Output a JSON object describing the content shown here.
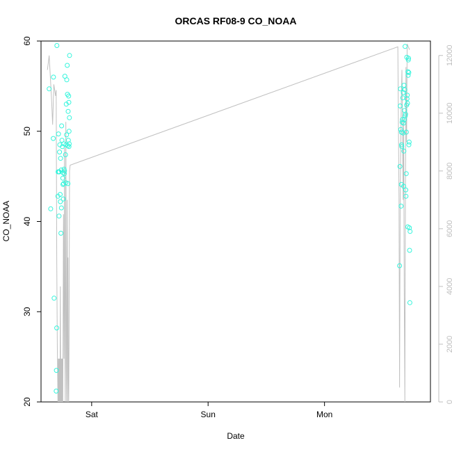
{
  "chart_data": {
    "type": "scatter",
    "title": "ORCAS RF08-9 CO_NOAA",
    "xlabel": "Date",
    "ylabel": "CO_NOAA",
    "x_ticks": [
      "Sat",
      "Sun",
      "Mon"
    ],
    "x_tick_positions_days": [
      1,
      2,
      3
    ],
    "xlim_days": [
      0.565,
      3.91
    ],
    "ylim": [
      20,
      60
    ],
    "y_ticks": [
      20,
      30,
      40,
      50,
      60
    ],
    "y2lim": [
      0,
      12500
    ],
    "y2_ticks": [
      0,
      2000,
      4000,
      6000,
      8000,
      10000,
      12000
    ],
    "grid": false,
    "legend": "none",
    "colors": {
      "points": "#33f5dc",
      "line": "#c0c0c0",
      "axis": "#000000",
      "right_axis": "#bebebe"
    },
    "series": [
      {
        "kind": "points",
        "axis": "left",
        "points": [
          [
            0.635,
            54.7
          ],
          [
            0.648,
            41.4
          ],
          [
            0.67,
            49.2
          ],
          [
            0.672,
            56.0
          ],
          [
            0.677,
            31.5
          ],
          [
            0.695,
            21.2
          ],
          [
            0.697,
            23.5
          ],
          [
            0.7,
            28.2
          ],
          [
            0.701,
            59.5
          ],
          [
            0.71,
            42.8
          ],
          [
            0.712,
            45.5
          ],
          [
            0.715,
            49.7
          ],
          [
            0.718,
            45.5
          ],
          [
            0.72,
            40.6
          ],
          [
            0.722,
            45.5
          ],
          [
            0.724,
            47.7
          ],
          [
            0.726,
            48.5
          ],
          [
            0.729,
            43.0
          ],
          [
            0.731,
            42.2
          ],
          [
            0.733,
            47.0
          ],
          [
            0.736,
            38.7
          ],
          [
            0.738,
            45.7
          ],
          [
            0.74,
            41.5
          ],
          [
            0.742,
            50.6
          ],
          [
            0.745,
            49.0
          ],
          [
            0.748,
            48.3
          ],
          [
            0.752,
            44.8
          ],
          [
            0.754,
            44.1
          ],
          [
            0.755,
            45.4
          ],
          [
            0.757,
            42.5
          ],
          [
            0.759,
            44.2
          ],
          [
            0.761,
            48.6
          ],
          [
            0.763,
            45.8
          ],
          [
            0.765,
            45.3
          ],
          [
            0.767,
            45.6
          ],
          [
            0.77,
            56.1
          ],
          [
            0.775,
            47.4
          ],
          [
            0.778,
            44.3
          ],
          [
            0.78,
            48.5
          ],
          [
            0.782,
            53.0
          ],
          [
            0.784,
            49.6
          ],
          [
            0.786,
            55.7
          ],
          [
            0.79,
            57.3
          ],
          [
            0.792,
            54.1
          ],
          [
            0.795,
            48.4
          ],
          [
            0.796,
            44.2
          ],
          [
            0.798,
            52.2
          ],
          [
            0.8,
            49.0
          ],
          [
            0.802,
            53.9
          ],
          [
            0.804,
            53.2
          ],
          [
            0.806,
            50.0
          ],
          [
            0.807,
            48.6
          ],
          [
            0.809,
            51.5
          ],
          [
            0.81,
            58.4
          ],
          [
            0.805,
            48.3
          ],
          [
            3.645,
            35.1
          ],
          [
            3.648,
            46.1
          ],
          [
            3.65,
            52.8
          ],
          [
            3.652,
            54.7
          ],
          [
            3.655,
            50.2
          ],
          [
            3.658,
            41.7
          ],
          [
            3.66,
            44.1
          ],
          [
            3.661,
            49.9
          ],
          [
            3.662,
            48.5
          ],
          [
            3.664,
            48.3
          ],
          [
            3.667,
            51.0
          ],
          [
            3.67,
            51.3
          ],
          [
            3.672,
            53.7
          ],
          [
            3.675,
            49.8
          ],
          [
            3.677,
            54.3
          ],
          [
            3.678,
            50.9
          ],
          [
            3.68,
            43.9
          ],
          [
            3.682,
            47.8
          ],
          [
            3.683,
            55.1
          ],
          [
            3.686,
            51.3
          ],
          [
            3.688,
            52.3
          ],
          [
            3.69,
            54.6
          ],
          [
            3.692,
            59.4
          ],
          [
            3.694,
            51.7
          ],
          [
            3.696,
            51.9
          ],
          [
            3.698,
            43.5
          ],
          [
            3.7,
            42.8
          ],
          [
            3.702,
            45.3
          ],
          [
            3.703,
            49.9
          ],
          [
            3.705,
            52.9
          ],
          [
            3.707,
            58.2
          ],
          [
            3.709,
            53.6
          ],
          [
            3.711,
            54.0
          ],
          [
            3.713,
            53.1
          ],
          [
            3.715,
            39.4
          ],
          [
            3.717,
            56.6
          ],
          [
            3.719,
            56.2
          ],
          [
            3.72,
            57.9
          ],
          [
            3.722,
            58.1
          ],
          [
            3.724,
            56.5
          ],
          [
            3.725,
            48.5
          ],
          [
            3.727,
            48.8
          ],
          [
            3.729,
            39.3
          ],
          [
            3.731,
            36.8
          ],
          [
            3.733,
            31.0
          ],
          [
            3.735,
            38.9
          ]
        ]
      },
      {
        "kind": "line",
        "axis": "right",
        "points": [
          [
            0.62,
            11500
          ],
          [
            0.635,
            12000
          ],
          [
            0.655,
            10500
          ],
          [
            0.665,
            9600
          ],
          [
            0.675,
            11000
          ],
          [
            0.69,
            10600
          ],
          [
            0.695,
            10800
          ],
          [
            0.7,
            5000
          ],
          [
            0.705,
            2000
          ],
          [
            0.71,
            0
          ],
          [
            0.713,
            1500
          ],
          [
            0.716,
            0
          ],
          [
            0.719,
            1500
          ],
          [
            0.722,
            0
          ],
          [
            0.725,
            1500
          ],
          [
            0.728,
            0
          ],
          [
            0.731,
            4000
          ],
          [
            0.734,
            0
          ],
          [
            0.737,
            1500
          ],
          [
            0.74,
            0
          ],
          [
            0.743,
            1500
          ],
          [
            0.746,
            0
          ],
          [
            0.749,
            1500
          ],
          [
            0.752,
            0
          ],
          [
            0.758,
            6500
          ],
          [
            0.762,
            1500
          ],
          [
            0.766,
            8800
          ],
          [
            0.77,
            2000
          ],
          [
            0.773,
            0
          ],
          [
            0.778,
            9700
          ],
          [
            0.782,
            1500
          ],
          [
            0.785,
            0
          ],
          [
            0.79,
            7000
          ],
          [
            0.794,
            0
          ],
          [
            0.797,
            5000
          ],
          [
            0.8,
            1000
          ],
          [
            0.803,
            0
          ],
          [
            0.806,
            2000
          ],
          [
            0.81,
            8000
          ],
          [
            0.815,
            8200
          ],
          [
            3.63,
            12300
          ],
          [
            3.64,
            7000
          ],
          [
            3.645,
            500
          ],
          [
            3.65,
            7000
          ],
          [
            3.655,
            9000
          ],
          [
            3.66,
            10500
          ],
          [
            3.665,
            11500
          ],
          [
            3.67,
            9500
          ],
          [
            3.675,
            7000
          ],
          [
            3.68,
            9800
          ],
          [
            3.685,
            4000
          ],
          [
            3.69,
            0
          ],
          [
            3.695,
            7000
          ],
          [
            3.7,
            11600
          ],
          [
            3.705,
            9000
          ],
          [
            3.71,
            12400
          ],
          [
            3.72,
            12300
          ],
          [
            3.73,
            12200
          ]
        ]
      }
    ]
  }
}
